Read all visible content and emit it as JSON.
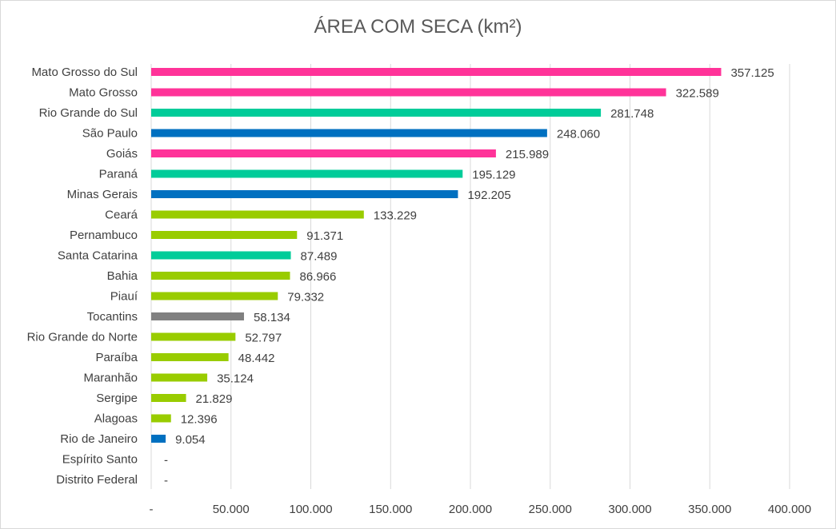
{
  "chart_data": {
    "type": "bar",
    "orientation": "horizontal",
    "title": "ÁREA COM SECA (km²)",
    "xlabel": "",
    "ylabel": "",
    "xlim": [
      0,
      400000
    ],
    "grid": true,
    "legend": "none",
    "x_tick_labels": [
      "-",
      "50.000",
      "100.000",
      "150.000",
      "200.000",
      "250.000",
      "300.000",
      "350.000",
      "400.000"
    ],
    "x_ticks": [
      0,
      50000,
      100000,
      150000,
      200000,
      250000,
      300000,
      350000,
      400000
    ],
    "categories": [
      "Mato Grosso do Sul",
      "Mato Grosso",
      "Rio Grande do Sul",
      "São Paulo",
      "Goiás",
      "Paraná",
      "Minas Gerais",
      "Ceará",
      "Pernambuco",
      "Santa Catarina",
      "Bahia",
      "Piauí",
      "Tocantins",
      "Rio Grande do Norte",
      "Paraíba",
      "Maranhão",
      "Sergipe",
      "Alagoas",
      "Rio de Janeiro",
      "Espírito Santo",
      "Distrito Federal"
    ],
    "values": [
      357125,
      322589,
      281748,
      248060,
      215989,
      195129,
      192205,
      133229,
      91371,
      87489,
      86966,
      79332,
      58134,
      52797,
      48442,
      35124,
      21829,
      12396,
      9054,
      0,
      0
    ],
    "data_labels": [
      "357.125",
      "322.589",
      "281.748",
      "248.060",
      "215.989",
      "195.129",
      "192.205",
      "133.229",
      "91.371",
      "87.489",
      "86.966",
      "79.332",
      "58.134",
      "52.797",
      "48.442",
      "35.124",
      "21.829",
      "12.396",
      "9.054",
      "-",
      "-"
    ],
    "colors": [
      "#FF3399",
      "#FF3399",
      "#00CC99",
      "#0070C0",
      "#FF3399",
      "#00CC99",
      "#0070C0",
      "#99CC00",
      "#99CC00",
      "#00CC99",
      "#99CC00",
      "#99CC00",
      "#808080",
      "#99CC00",
      "#99CC00",
      "#99CC00",
      "#99CC00",
      "#99CC00",
      "#0070C0",
      "#0070C0",
      "#FF3399"
    ]
  }
}
